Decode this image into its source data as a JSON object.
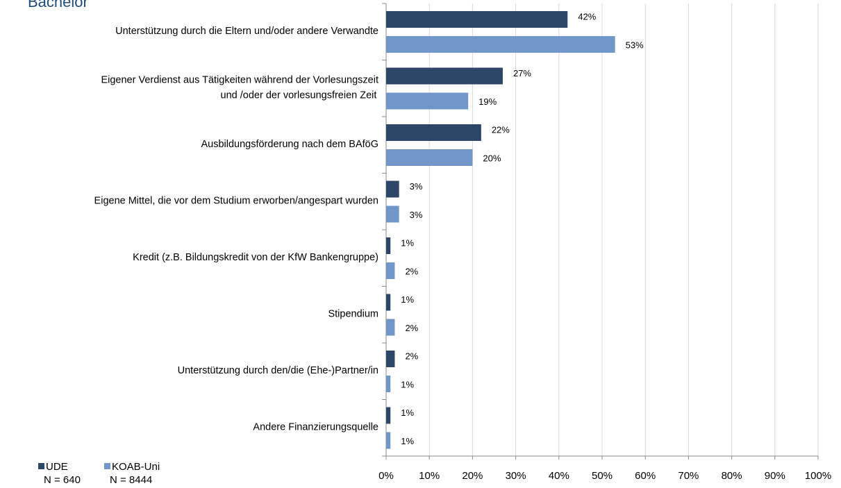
{
  "chart_data": {
    "type": "bar",
    "orientation": "horizontal",
    "title": "Bachelor",
    "categories": [
      "Unterstützung durch die Eltern und/oder andere Verwandte",
      "Eigener Verdienst aus Tätigkeiten während der Vorlesungszeit\nund /oder der vorlesungsfreien Zeit",
      "Ausbildungsförderung nach dem BAföG",
      "Eigene Mittel, die vor dem Studium erworben/angespart wurden",
      "Kredit (z.B. Bildungskredit von der KfW Bankengruppe)",
      "Stipendium",
      "Unterstützung durch den/die  (Ehe-)Partner/in",
      "Andere Finanzierungsquelle"
    ],
    "series": [
      {
        "name": "UDE",
        "n_label": "N = 640",
        "color": "#2c4668",
        "values": [
          42,
          27,
          22,
          3,
          1,
          1,
          2,
          1
        ],
        "value_labels": [
          "42%",
          "27%",
          "22%",
          "3%",
          "1%",
          "1%",
          "2%",
          "1%"
        ]
      },
      {
        "name": "KOAB-Uni",
        "n_label": "N = 8444",
        "color": "#7197c8",
        "values": [
          53,
          19,
          20,
          3,
          2,
          2,
          1,
          1
        ],
        "value_labels": [
          "53%",
          "19%",
          "20%",
          "3%",
          "2%",
          "2%",
          "1%",
          "1%"
        ]
      }
    ],
    "xlim": [
      0,
      100
    ],
    "xticks": [
      {
        "value": 0,
        "label": "0%"
      },
      {
        "value": 10,
        "label": "10%"
      },
      {
        "value": 20,
        "label": "20%"
      },
      {
        "value": 30,
        "label": "30%"
      },
      {
        "value": 40,
        "label": "40%"
      },
      {
        "value": 50,
        "label": "50%"
      },
      {
        "value": 60,
        "label": "60%"
      },
      {
        "value": 70,
        "label": "70%"
      },
      {
        "value": 80,
        "label": "80%"
      },
      {
        "value": 90,
        "label": "90%"
      },
      {
        "value": 100,
        "label": "100%"
      }
    ],
    "grid": true,
    "legend": "bottom-left"
  }
}
